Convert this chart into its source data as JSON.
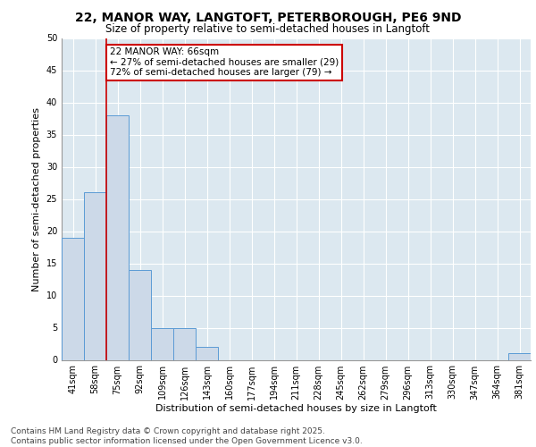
{
  "title1": "22, MANOR WAY, LANGTOFT, PETERBOROUGH, PE6 9ND",
  "title2": "Size of property relative to semi-detached houses in Langtoft",
  "xlabel": "Distribution of semi-detached houses by size in Langtoft",
  "ylabel": "Number of semi-detached properties",
  "bar_labels": [
    "41sqm",
    "58sqm",
    "75sqm",
    "92sqm",
    "109sqm",
    "126sqm",
    "143sqm",
    "160sqm",
    "177sqm",
    "194sqm",
    "211sqm",
    "228sqm",
    "245sqm",
    "262sqm",
    "279sqm",
    "296sqm",
    "313sqm",
    "330sqm",
    "347sqm",
    "364sqm",
    "381sqm"
  ],
  "bar_values": [
    19,
    26,
    38,
    14,
    5,
    5,
    2,
    0,
    0,
    0,
    0,
    0,
    0,
    0,
    0,
    0,
    0,
    0,
    0,
    0,
    1
  ],
  "bar_color": "#ccd9e8",
  "bar_edge_color": "#5b9bd5",
  "annotation_text": "22 MANOR WAY: 66sqm\n← 27% of semi-detached houses are smaller (29)\n72% of semi-detached houses are larger (79) →",
  "annotation_box_color": "#ffffff",
  "annotation_box_edge_color": "#cc0000",
  "red_line_x": 1.5,
  "ylim": [
    0,
    50
  ],
  "yticks": [
    0,
    5,
    10,
    15,
    20,
    25,
    30,
    35,
    40,
    45,
    50
  ],
  "plot_bg_color": "#dce8f0",
  "footer": "Contains HM Land Registry data © Crown copyright and database right 2025.\nContains public sector information licensed under the Open Government Licence v3.0.",
  "title1_fontsize": 10,
  "title2_fontsize": 8.5,
  "xlabel_fontsize": 8,
  "ylabel_fontsize": 8,
  "tick_fontsize": 7,
  "footer_fontsize": 6.5,
  "annot_fontsize": 7.5
}
